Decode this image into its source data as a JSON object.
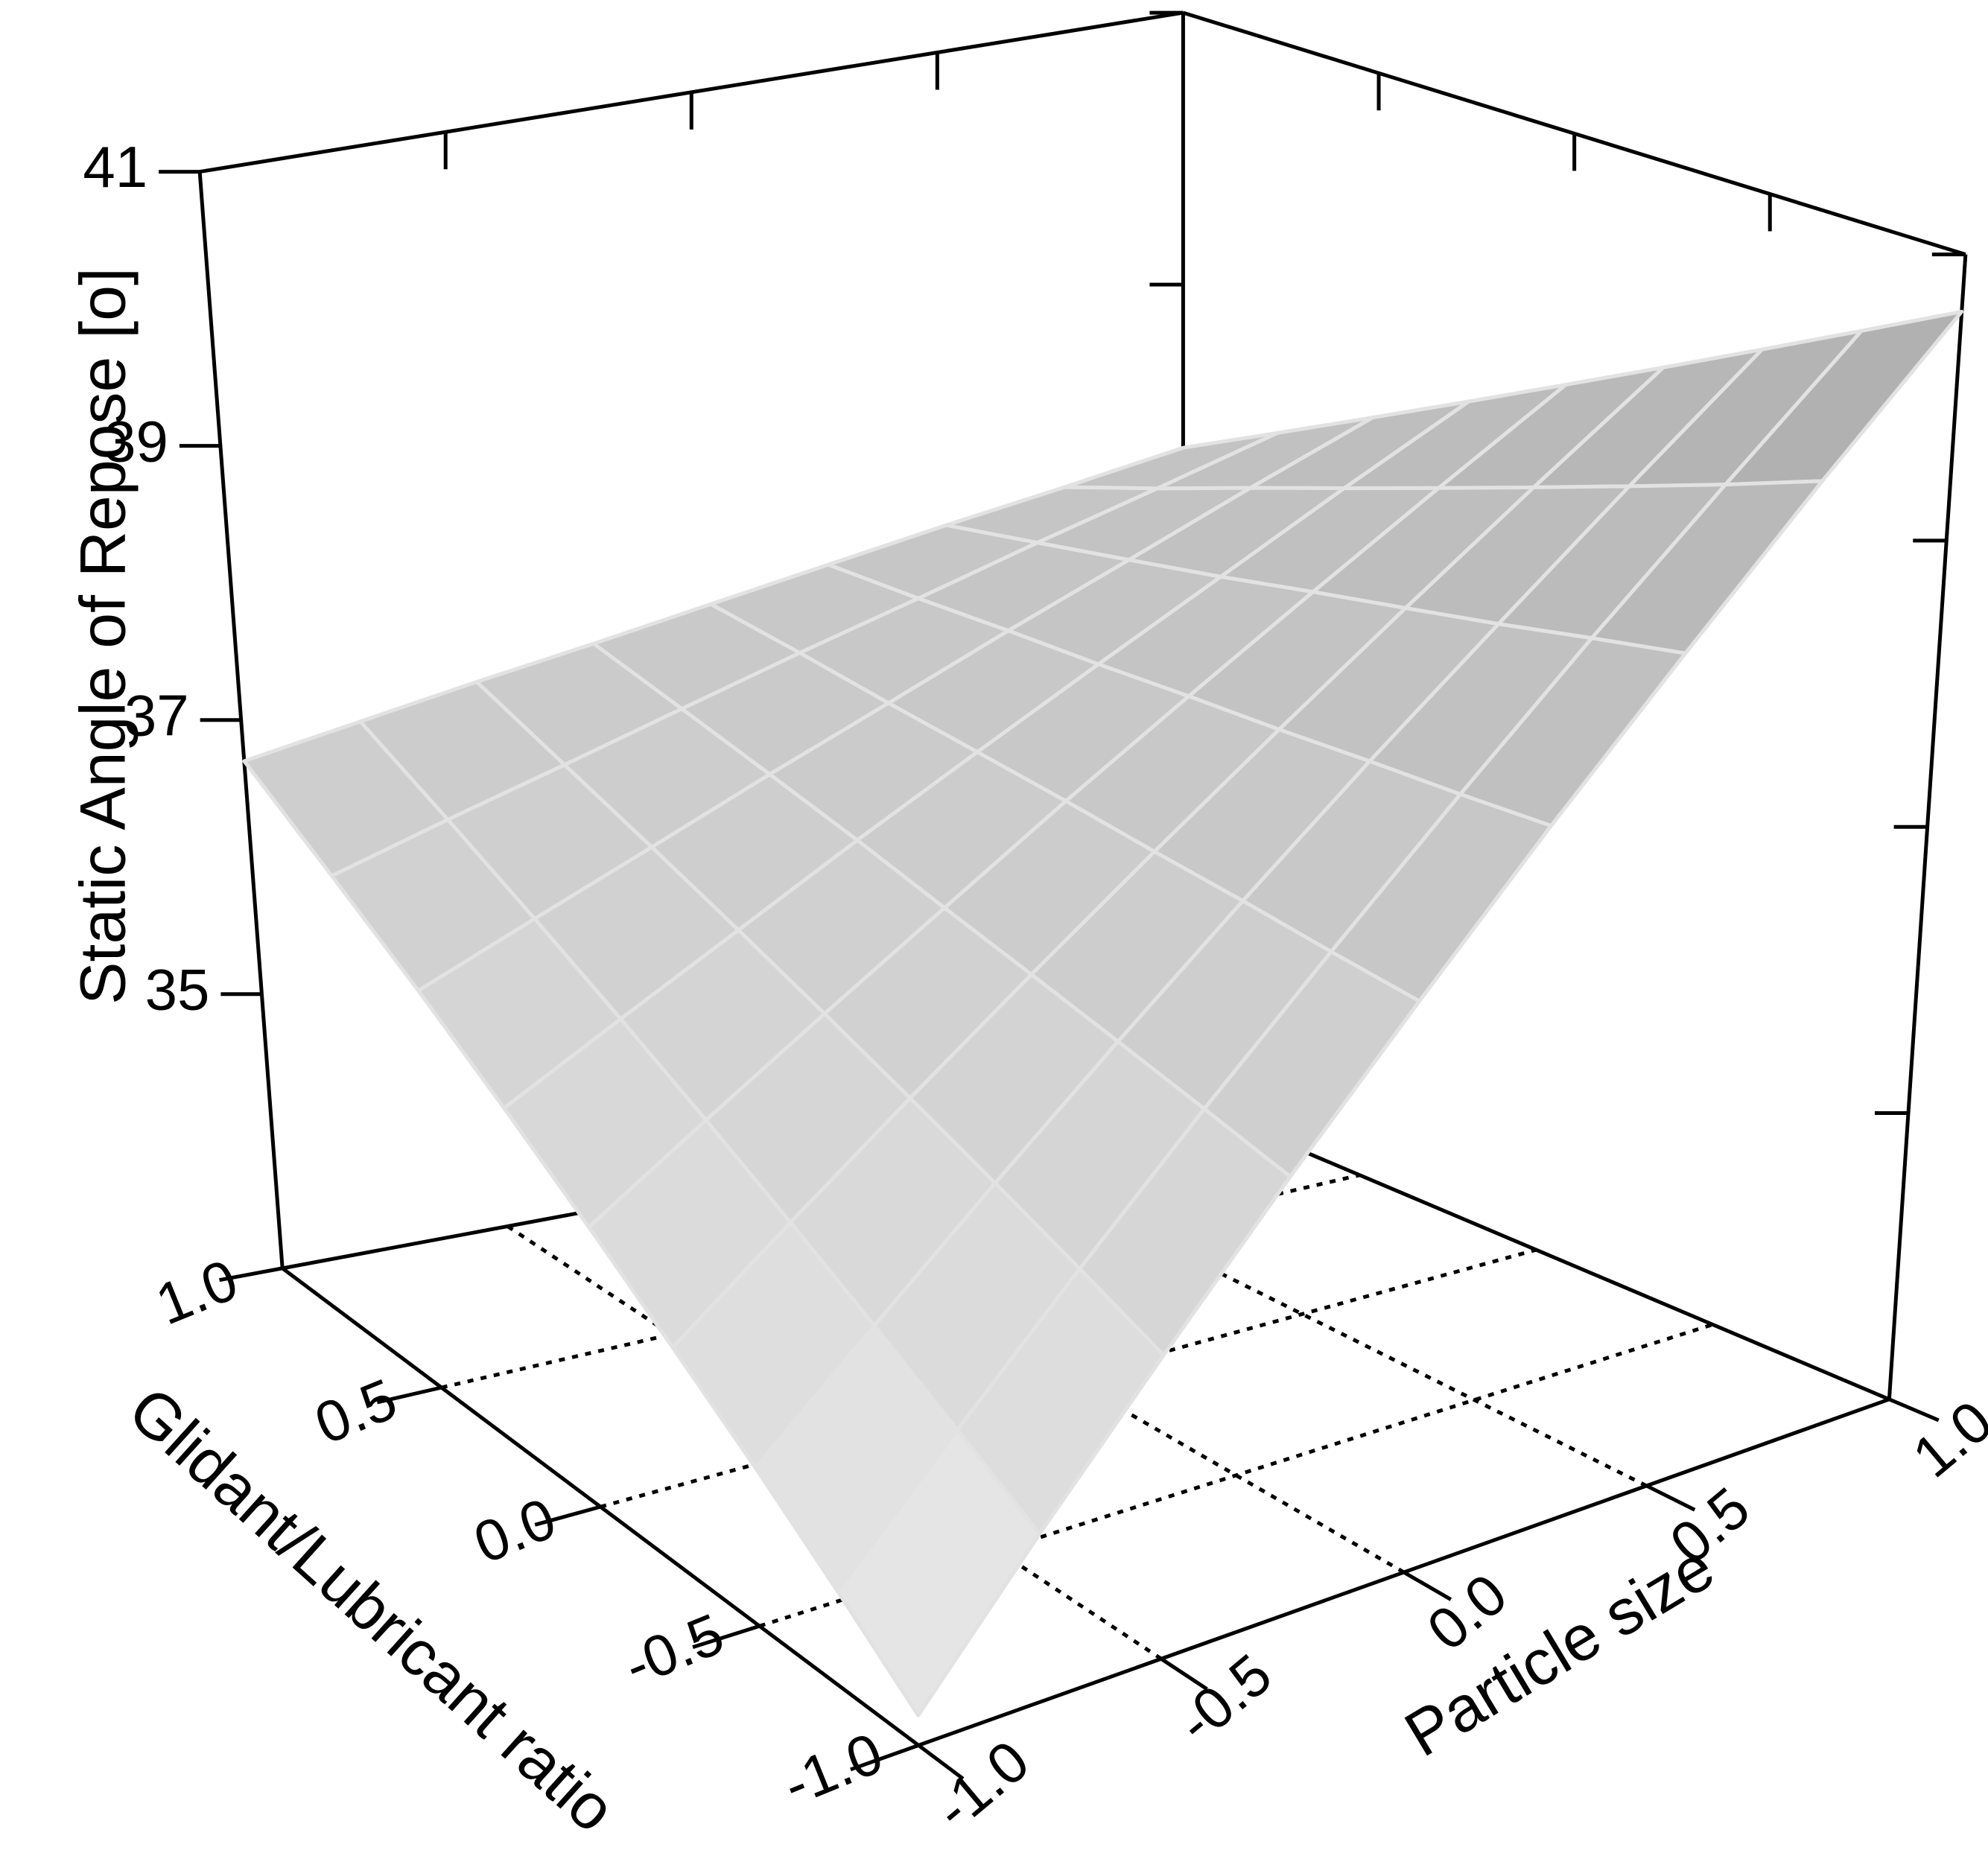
{
  "chart_data": {
    "type": "surface3d",
    "zlabel": "Static Angle of Repose [o]",
    "xlabel": "Particle size",
    "ylabel": "Glidant/Lubricant ratio",
    "x": [
      -1,
      -0.75,
      -0.5,
      -0.25,
      0,
      0.25,
      0.5,
      0.75,
      1
    ],
    "y": [
      -1,
      -0.75,
      -0.5,
      -0.25,
      0,
      0.25,
      0.5,
      0.75,
      1
    ],
    "z": [
      [
        33.2,
        34.13,
        35.05,
        35.98,
        36.9,
        37.83,
        38.75,
        39.68,
        40.6
      ],
      [
        33.64,
        34.46,
        35.29,
        36.12,
        36.94,
        37.77,
        38.6,
        39.42,
        40.25
      ],
      [
        34.08,
        34.8,
        35.53,
        36.26,
        36.99,
        37.72,
        38.44,
        39.17,
        39.9
      ],
      [
        34.51,
        35.14,
        35.77,
        36.4,
        37.03,
        37.66,
        38.29,
        38.92,
        39.55
      ],
      [
        34.95,
        35.48,
        36.01,
        36.54,
        37.08,
        37.61,
        38.14,
        38.67,
        39.2
      ],
      [
        35.39,
        35.82,
        36.25,
        36.69,
        37.12,
        37.55,
        37.98,
        38.42,
        38.85
      ],
      [
        35.83,
        36.16,
        36.49,
        36.83,
        37.16,
        37.5,
        37.83,
        38.17,
        38.5
      ],
      [
        36.26,
        36.5,
        36.73,
        36.97,
        37.21,
        37.44,
        37.68,
        37.91,
        38.15
      ],
      [
        36.7,
        36.84,
        36.98,
        37.11,
        37.25,
        37.39,
        37.53,
        37.66,
        37.8
      ]
    ],
    "xlim": [
      -1,
      1
    ],
    "ylim": [
      -1,
      1
    ],
    "zlim": [
      33,
      41
    ],
    "xticks": [
      {
        "value": -1,
        "label": "-1.0"
      },
      {
        "value": -0.5,
        "label": "-0.5"
      },
      {
        "value": 0,
        "label": "0.0"
      },
      {
        "value": 0.5,
        "label": "0.5"
      },
      {
        "value": 1,
        "label": "1.0"
      }
    ],
    "yticks": [
      {
        "value": -1,
        "label": "-1.0"
      },
      {
        "value": -0.5,
        "label": "-0.5"
      },
      {
        "value": 0,
        "label": "0.0"
      },
      {
        "value": 0.5,
        "label": "0.5"
      },
      {
        "value": 1,
        "label": "1.0"
      }
    ],
    "zticks": [
      35,
      37,
      39,
      41
    ],
    "floor_grid": true,
    "colormap": [
      "#ececec",
      "#a9a9a9"
    ],
    "mesh_color": "#e2e2e2"
  }
}
